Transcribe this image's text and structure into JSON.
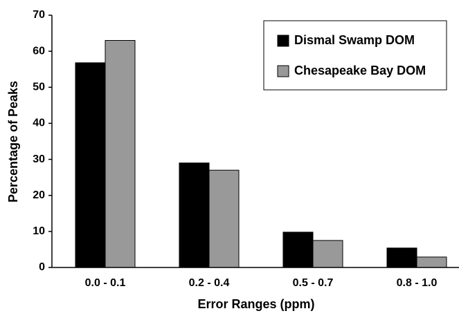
{
  "chart_data": {
    "type": "bar",
    "x_label": "Error Ranges (ppm)",
    "y_label": "Percentage of Peaks",
    "categories": [
      "0.0 - 0.1",
      "0.2 - 0.4",
      "0.5 - 0.7",
      "0.8 - 1.0"
    ],
    "series": [
      {
        "name": "Dismal Swamp DOM",
        "color": "#000000",
        "values": [
          56.8,
          29.0,
          9.8,
          5.4
        ]
      },
      {
        "name": "Chesapeake Bay DOM",
        "color": "#999999",
        "values": [
          63.0,
          27.0,
          7.5,
          2.9
        ]
      }
    ],
    "ylim": [
      0,
      70
    ],
    "yticks": [
      0,
      10,
      20,
      30,
      40,
      50,
      60,
      70
    ],
    "grid": false,
    "legend": "top-right"
  }
}
